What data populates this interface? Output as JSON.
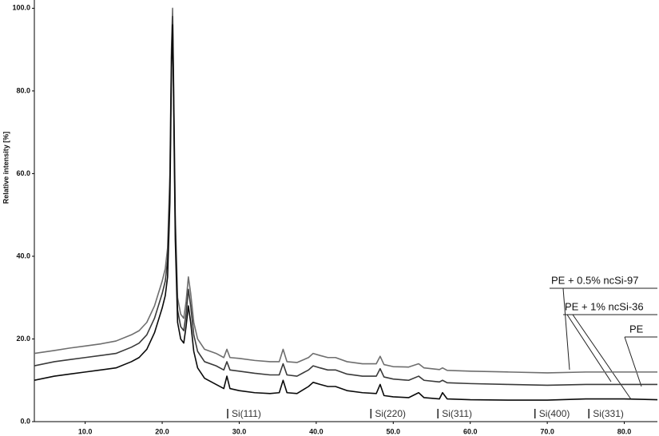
{
  "chart_data": {
    "type": "line",
    "y_label": "Relative intensity [%]",
    "x": [
      3.4,
      6,
      8,
      10,
      12,
      14,
      16,
      17,
      18,
      19,
      19.5,
      20,
      20.4,
      20.7,
      21.0,
      21.2,
      21.35,
      21.5,
      21.7,
      22.0,
      22.4,
      22.8,
      23.1,
      23.4,
      23.7,
      24.1,
      24.6,
      25.5,
      27,
      28.0,
      28.4,
      28.8,
      30,
      32,
      34,
      35.2,
      35.7,
      36.2,
      37.5,
      39,
      39.6,
      40.5,
      41.5,
      42.5,
      44,
      46,
      47.8,
      48.3,
      48.8,
      50,
      52,
      53.3,
      54,
      56,
      56.4,
      57,
      60,
      65,
      70,
      75,
      80,
      84.3
    ],
    "series": [
      {
        "name": "PE + 0.5% ncSi-97",
        "color": "#6e6e6e",
        "values": [
          16.5,
          17.2,
          17.8,
          18.3,
          18.8,
          19.5,
          21,
          22,
          24,
          28,
          31,
          34,
          37,
          42,
          60,
          90,
          100,
          80,
          50,
          30,
          26,
          25,
          29,
          35,
          31,
          24,
          20,
          17.5,
          16.5,
          15.5,
          17.5,
          15.5,
          15.3,
          14.8,
          14.5,
          14.5,
          17.5,
          14.5,
          14.3,
          15.5,
          16.5,
          16,
          15.5,
          15.5,
          14.5,
          14,
          14,
          15.8,
          13.8,
          13.3,
          13.2,
          14,
          13,
          12.6,
          13,
          12.4,
          12.2,
          12,
          11.8,
          12,
          12,
          12
        ]
      },
      {
        "name": "PE + 1% ncSi-36",
        "color": "#3a3a3a",
        "values": [
          13.5,
          14.5,
          15,
          15.5,
          16,
          16.5,
          18,
          19,
          21,
          25,
          28,
          31,
          34,
          39,
          57,
          88,
          98,
          78,
          47,
          27,
          23,
          22,
          26,
          32,
          28,
          21,
          17,
          14.5,
          13.5,
          12.5,
          14.5,
          12.5,
          12.2,
          11.7,
          11.3,
          11.3,
          14,
          11.3,
          11,
          12.5,
          13.5,
          13,
          12.5,
          12.5,
          11.5,
          11,
          11,
          12.8,
          10.8,
          10.3,
          10,
          11,
          10,
          9.6,
          10,
          9.4,
          9.2,
          9,
          8.8,
          9,
          9,
          9
        ]
      },
      {
        "name": "PE",
        "color": "#0a0a0a",
        "values": [
          10,
          11,
          11.5,
          12,
          12.5,
          13,
          14.5,
          15.5,
          17.5,
          21.5,
          24.5,
          27.5,
          30.5,
          35,
          53,
          85,
          96,
          75,
          44,
          24,
          20,
          19,
          23,
          28,
          24,
          17,
          13,
          10.5,
          9,
          8,
          11,
          8,
          7.5,
          7,
          6.8,
          7,
          10,
          7,
          6.8,
          8.5,
          9.5,
          9,
          8.5,
          8.5,
          7.5,
          7,
          6.8,
          9,
          6.3,
          6,
          5.8,
          7,
          5.8,
          5.5,
          7,
          5.5,
          5.3,
          5.2,
          5.2,
          5.5,
          5.5,
          5.3
        ]
      }
    ],
    "xlim": [
      3.4,
      84.3
    ],
    "ylim": [
      0,
      102
    ],
    "xticks": [
      {
        "value": 10,
        "label": "10.0"
      },
      {
        "value": 20,
        "label": "20.0"
      },
      {
        "value": 30,
        "label": "30.0"
      },
      {
        "value": 40,
        "label": "40.0"
      },
      {
        "value": 50,
        "label": "50.0"
      },
      {
        "value": 60,
        "label": "60.0"
      },
      {
        "value": 70,
        "label": "70.0"
      },
      {
        "value": 80,
        "label": "80.0"
      }
    ],
    "yticks": [
      {
        "value": 0,
        "label": "0.0"
      },
      {
        "value": 20,
        "label": "20.0"
      },
      {
        "value": 40,
        "label": "40.0"
      },
      {
        "value": 60,
        "label": "60.0"
      },
      {
        "value": 80,
        "label": "80.0"
      },
      {
        "value": 100,
        "label": "100.0"
      }
    ],
    "annotations": [
      {
        "text": "Si(111)",
        "x": 28.5
      },
      {
        "text": "Si(220)",
        "x": 47.1
      },
      {
        "text": "Si(311)",
        "x": 55.8
      },
      {
        "text": "Si(400)",
        "x": 68.4
      },
      {
        "text": "Si(331)",
        "x": 75.4
      }
    ]
  }
}
